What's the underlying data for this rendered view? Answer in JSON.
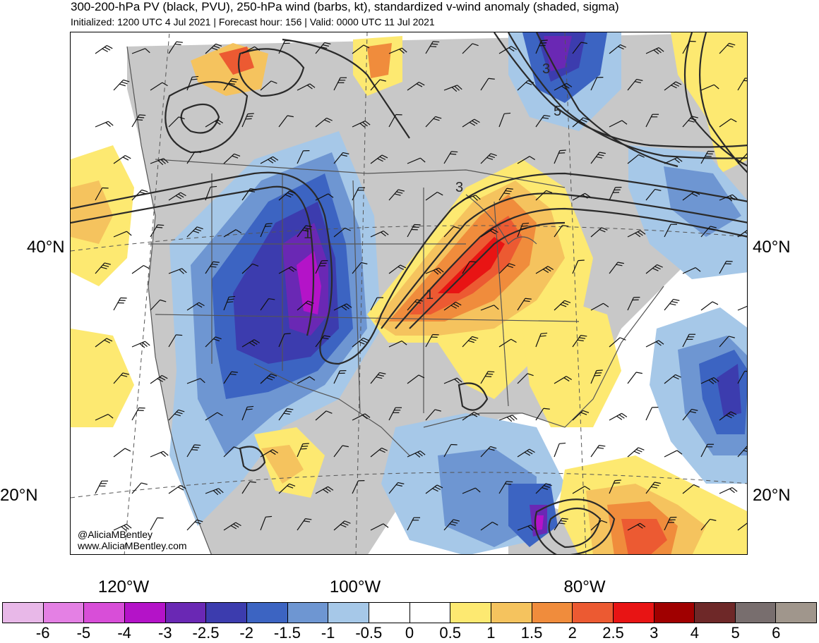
{
  "header": {
    "title": "300-200-hPa PV (black, PVU), 250-hPa wind (barbs, kt), standardized v-wind anomaly (shaded, sigma)",
    "subtitle": "Initialized: 1200 UTC 4 Jul 2021 | Forecast hour: 156 | Valid: 0000 UTC 11 Jul 2021"
  },
  "map": {
    "lat_labels": [
      "40°N",
      "20°N"
    ],
    "lon_labels": [
      "120°W",
      "100°W",
      "80°W"
    ],
    "contour_labels": [
      "3",
      "5",
      "3",
      "1",
      "1"
    ],
    "credit_line1": "@AliciaMBentley",
    "credit_line2": "www.AliciaMBentley.com"
  },
  "colorbar": {
    "colors": [
      "#e8b8e8",
      "#e480e4",
      "#d84ed8",
      "#b413c8",
      "#6a28b4",
      "#3c3cae",
      "#3c64c2",
      "#6e96d2",
      "#a6c8e8",
      "#ffffff",
      "#ffffff",
      "#fde971",
      "#f5c35e",
      "#f08c3c",
      "#ec5a32",
      "#e81414",
      "#a00000",
      "#6e2828",
      "#786e6e",
      "#a0968c"
    ],
    "labels": [
      "-6",
      "-5",
      "-4",
      "-3",
      "-2.5",
      "-2",
      "-1.5",
      "-1",
      "-0.5",
      "0",
      "0.5",
      "1",
      "1.5",
      "2",
      "2.5",
      "3",
      "4",
      "5",
      "6"
    ]
  }
}
